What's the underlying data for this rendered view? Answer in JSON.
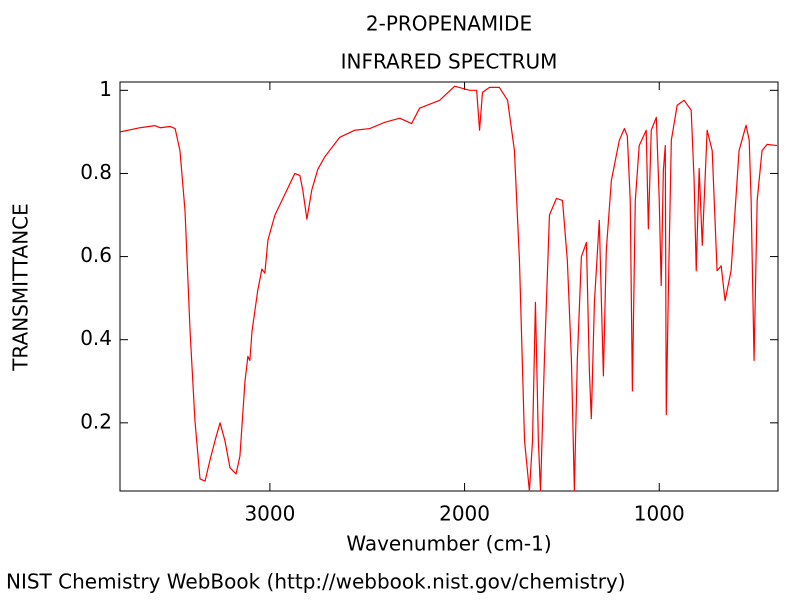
{
  "chart_data": {
    "type": "line",
    "title": "2-PROPENAMIDE",
    "subtitle": "INFRARED SPECTRUM",
    "x_label": "Wavenumber (cm-1)",
    "y_label": "TRANSMITTANCE",
    "credit": "NIST Chemistry WebBook (http://webbook.nist.gov/chemistry)",
    "color": "#ff0000",
    "xlim": [
      3770,
      390
    ],
    "ylim": [
      0.036,
      1.02
    ],
    "xticks": [
      3000,
      2000,
      1000
    ],
    "yticks": [
      0.2,
      0.4,
      0.6,
      0.8,
      1
    ],
    "x": [
      3769,
      3667,
      3590,
      3564,
      3513,
      3487,
      3462,
      3436,
      3410,
      3385,
      3359,
      3333,
      3308,
      3282,
      3256,
      3231,
      3205,
      3174,
      3154,
      3128,
      3113,
      3103,
      3092,
      3062,
      3041,
      3026,
      3010,
      2974,
      2923,
      2872,
      2846,
      2831,
      2810,
      2785,
      2754,
      2718,
      2641,
      2564,
      2487,
      2410,
      2333,
      2272,
      2231,
      2128,
      2051,
      1974,
      1938,
      1923,
      1908,
      1872,
      1821,
      1779,
      1744,
      1718,
      1692,
      1667,
      1651,
      1636,
      1621,
      1610,
      1590,
      1564,
      1528,
      1497,
      1472,
      1451,
      1436,
      1421,
      1400,
      1374,
      1359,
      1349,
      1333,
      1308,
      1297,
      1287,
      1272,
      1246,
      1205,
      1179,
      1164,
      1149,
      1138,
      1123,
      1103,
      1067,
      1056,
      1041,
      1015,
      1000,
      990,
      979,
      969,
      964,
      954,
      938,
      908,
      872,
      836,
      821,
      810,
      795,
      779,
      754,
      728,
      703,
      682,
      662,
      631,
      590,
      554,
      538,
      528,
      513,
      497,
      472,
      446,
      395
    ],
    "values": [
      0.9,
      0.91,
      0.915,
      0.91,
      0.913,
      0.908,
      0.855,
      0.71,
      0.42,
      0.205,
      0.065,
      0.06,
      0.11,
      0.157,
      0.2,
      0.157,
      0.092,
      0.077,
      0.12,
      0.3,
      0.36,
      0.35,
      0.42,
      0.52,
      0.57,
      0.56,
      0.64,
      0.7,
      0.75,
      0.8,
      0.795,
      0.76,
      0.69,
      0.76,
      0.81,
      0.84,
      0.887,
      0.904,
      0.908,
      0.923,
      0.933,
      0.92,
      0.957,
      0.976,
      1.01,
      1.0,
      1.0,
      0.904,
      0.995,
      1.007,
      1.007,
      0.976,
      0.855,
      0.59,
      0.157,
      0.036,
      0.157,
      0.49,
      0.157,
      0.036,
      0.35,
      0.7,
      0.74,
      0.735,
      0.59,
      0.35,
      0.036,
      0.35,
      0.6,
      0.634,
      0.325,
      0.21,
      0.49,
      0.687,
      0.49,
      0.313,
      0.615,
      0.783,
      0.88,
      0.908,
      0.89,
      0.735,
      0.277,
      0.735,
      0.867,
      0.904,
      0.667,
      0.904,
      0.935,
      0.735,
      0.53,
      0.807,
      0.867,
      0.22,
      0.494,
      0.88,
      0.964,
      0.976,
      0.952,
      0.783,
      0.566,
      0.812,
      0.627,
      0.904,
      0.855,
      0.566,
      0.578,
      0.494,
      0.566,
      0.855,
      0.916,
      0.88,
      0.735,
      0.35,
      0.735,
      0.855,
      0.87,
      0.867
    ]
  }
}
